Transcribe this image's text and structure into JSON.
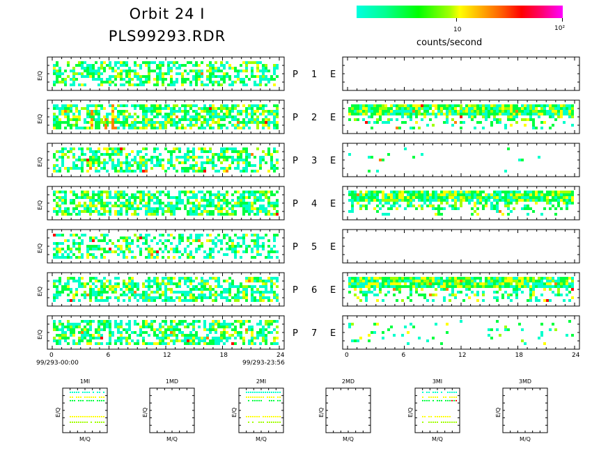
{
  "header": {
    "title_line1": "Orbit 24 I",
    "title_line2": "PLS99293.RDR"
  },
  "colorbar": {
    "tick_10": "10",
    "tick_100": "10²",
    "unit_label": "counts/second"
  },
  "left_axis": {
    "ticks": [
      "0",
      "6",
      "12",
      "18",
      "24"
    ],
    "start_time": "99/293-00:00",
    "end_time": "99/293-23:56"
  },
  "right_axis": {
    "ticks": [
      "0",
      "6",
      "12",
      "18",
      "24"
    ]
  },
  "rows": [
    {
      "p": "P",
      "num": "1",
      "e": "E",
      "y_label": "E/Q"
    },
    {
      "p": "P",
      "num": "2",
      "e": "E",
      "y_label": "E/Q"
    },
    {
      "p": "P",
      "num": "3",
      "e": "E",
      "y_label": "E/Q"
    },
    {
      "p": "P",
      "num": "4",
      "e": "E",
      "y_label": "E/Q"
    },
    {
      "p": "P",
      "num": "5",
      "e": "E",
      "y_label": "E/Q"
    },
    {
      "p": "P",
      "num": "6",
      "e": "E",
      "y_label": "E/Q"
    },
    {
      "p": "P",
      "num": "7",
      "e": "E",
      "y_label": "E/Q"
    }
  ],
  "small_panels": [
    {
      "title": "1MI",
      "xlabel": "M/Q",
      "ylabel": "E/Q"
    },
    {
      "title": "1MD",
      "xlabel": "M/Q",
      "ylabel": "E/Q"
    },
    {
      "title": "2MI",
      "xlabel": "M/Q",
      "ylabel": "E/Q"
    },
    {
      "title": "2MD",
      "xlabel": "M/Q",
      "ylabel": "E/Q"
    },
    {
      "title": "3MI",
      "xlabel": "M/Q",
      "ylabel": "E/Q"
    },
    {
      "title": "3MD",
      "xlabel": "M/Q",
      "ylabel": "E/Q"
    }
  ],
  "colors": {
    "low": "#00ffcc",
    "mid_low": "#00ff40",
    "mid": "#a0ff00",
    "mid_high": "#ffff00",
    "high": "#ff8000",
    "very_high": "#ff0000"
  },
  "chart_data": {
    "type": "heatmap",
    "title": "Orbit 24 I",
    "subtitle": "PLS99293.RDR",
    "xlabel": "",
    "ylabel": "E/Q",
    "x_range_hours": [
      0,
      24
    ],
    "colorbar_range": [
      1,
      100
    ],
    "colorbar_scale": "log",
    "colorbar_label": "counts/second",
    "panels_left": [
      {
        "name": "P 1",
        "density": 0.55,
        "intensity": 0.25
      },
      {
        "name": "P 2",
        "density": 0.7,
        "intensity": 0.45
      },
      {
        "name": "P 3",
        "density": 0.55,
        "intensity": 0.25
      },
      {
        "name": "P 4",
        "density": 0.65,
        "intensity": 0.35
      },
      {
        "name": "P 5",
        "density": 0.45,
        "intensity": 0.15
      },
      {
        "name": "P 6",
        "density": 0.6,
        "intensity": 0.3
      },
      {
        "name": "P 7",
        "density": 0.6,
        "intensity": 0.3
      }
    ],
    "panels_right": [
      {
        "name": "E 1",
        "density": 0.0,
        "intensity": 0.0
      },
      {
        "name": "E 2",
        "density": 0.45,
        "intensity": 0.35
      },
      {
        "name": "E 3",
        "density": 0.01,
        "intensity": 0.0
      },
      {
        "name": "E 4",
        "density": 0.55,
        "intensity": 0.45
      },
      {
        "name": "E 5",
        "density": 0.0,
        "intensity": 0.0
      },
      {
        "name": "E 6",
        "density": 0.45,
        "intensity": 0.35
      },
      {
        "name": "E 7",
        "density": 0.08,
        "intensity": 0.05
      }
    ]
  }
}
